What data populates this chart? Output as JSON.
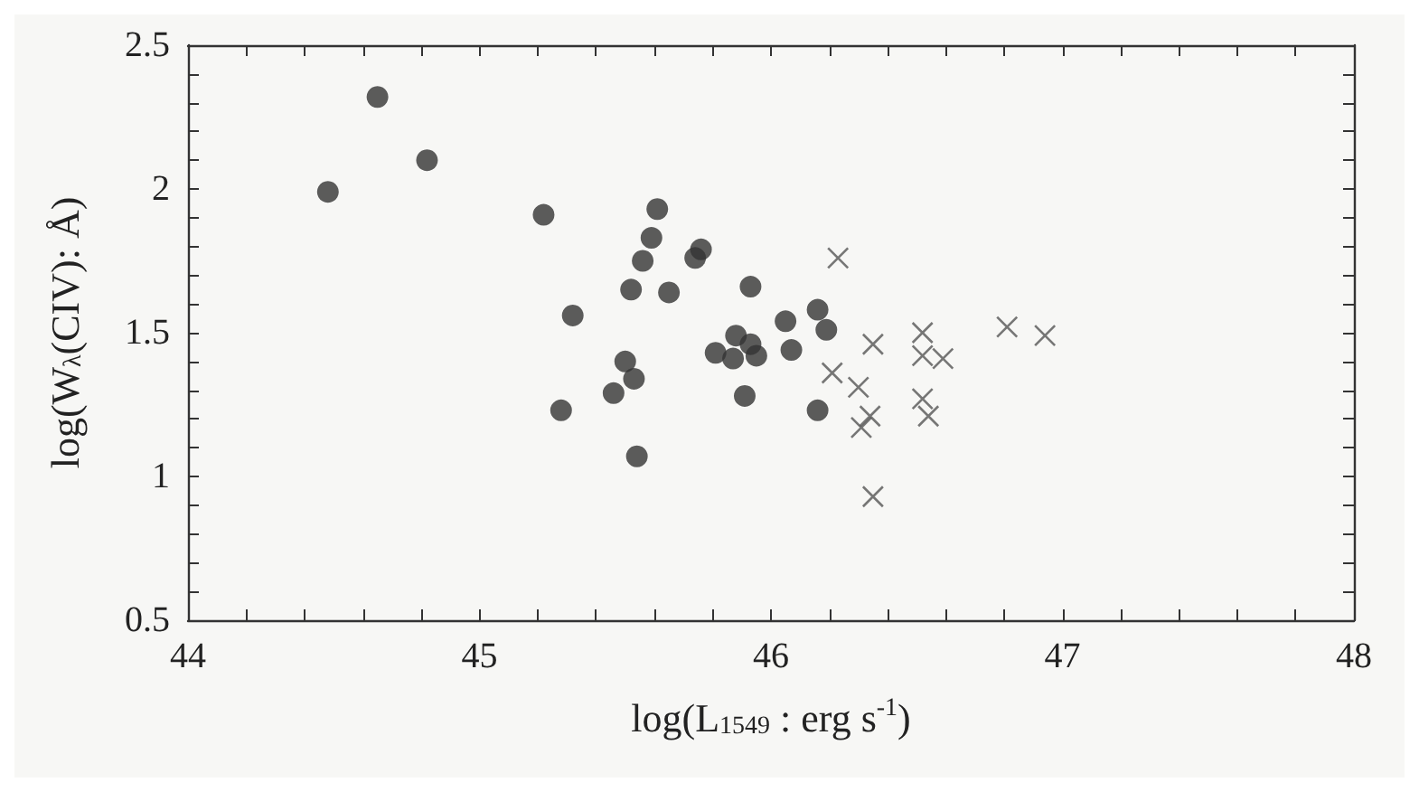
{
  "chart_data": {
    "type": "scatter",
    "xlabel": "log(L$_{1549}$ : erg s$^{-1}$)",
    "ylabel": "log(W$_{λ}$(CIV): Å)",
    "xlim": [
      44,
      48
    ],
    "ylim": [
      0.5,
      2.5
    ],
    "xticks": [
      44,
      {
        "value": 44.2,
        "label": null
      },
      {
        "value": 44.4,
        "label": null
      },
      {
        "value": 44.6,
        "label": null
      },
      {
        "value": 44.8,
        "label": null
      },
      45,
      {
        "value": 45.2,
        "label": null
      },
      {
        "value": 45.4,
        "label": null
      },
      {
        "value": 45.6,
        "label": null
      },
      {
        "value": 45.8,
        "label": null
      },
      46,
      {
        "value": 46.2,
        "label": null
      },
      {
        "value": 46.4,
        "label": null
      },
      {
        "value": 46.6,
        "label": null
      },
      {
        "value": 46.8,
        "label": null
      },
      47,
      {
        "value": 47.2,
        "label": null
      },
      {
        "value": 47.4,
        "label": null
      },
      {
        "value": 47.6,
        "label": null
      },
      {
        "value": 47.8,
        "label": null
      },
      48
    ],
    "yticks": [
      0.5,
      {
        "value": 0.6,
        "label": null
      },
      {
        "value": 0.7,
        "label": null
      },
      {
        "value": 0.8,
        "label": null
      },
      {
        "value": 0.9,
        "label": null
      },
      1,
      {
        "value": 1.1,
        "label": null
      },
      {
        "value": 1.2,
        "label": null
      },
      {
        "value": 1.3,
        "label": null
      },
      {
        "value": 1.4,
        "label": null
      },
      1.5,
      {
        "value": 1.6,
        "label": null
      },
      {
        "value": 1.7,
        "label": null
      },
      {
        "value": 1.8,
        "label": null
      },
      {
        "value": 1.9,
        "label": null
      },
      2,
      {
        "value": 2.1,
        "label": null
      },
      {
        "value": 2.2,
        "label": null
      },
      {
        "value": 2.3,
        "label": null
      },
      {
        "value": 2.4,
        "label": null
      },
      2.5
    ],
    "series": [
      {
        "marker": "circle",
        "color": "#333333",
        "x": [
          44.65,
          44.82,
          44.48,
          45.22,
          45.61,
          45.59,
          45.74,
          45.76,
          45.56,
          45.52,
          45.65,
          45.93,
          45.32,
          45.88,
          45.93,
          45.95,
          45.81,
          45.87,
          45.5,
          45.53,
          45.46,
          45.91,
          45.28,
          45.54,
          46.05,
          46.16,
          46.19,
          46.07,
          46.16
        ],
        "values": [
          2.32,
          2.1,
          1.99,
          1.91,
          1.93,
          1.83,
          1.76,
          1.79,
          1.75,
          1.65,
          1.64,
          1.66,
          1.56,
          1.49,
          1.46,
          1.42,
          1.43,
          1.41,
          1.4,
          1.34,
          1.29,
          1.28,
          1.23,
          1.07,
          1.54,
          1.58,
          1.51,
          1.44,
          1.23
        ]
      },
      {
        "marker": "cross",
        "color": "#555555",
        "x": [
          46.23,
          46.35,
          46.52,
          46.52,
          46.59,
          46.81,
          46.94,
          46.21,
          46.3,
          46.52,
          46.34,
          46.54,
          46.31,
          46.35
        ],
        "values": [
          1.76,
          1.46,
          1.5,
          1.42,
          1.41,
          1.52,
          1.49,
          1.36,
          1.31,
          1.27,
          1.21,
          1.21,
          1.17,
          0.93
        ]
      }
    ]
  }
}
